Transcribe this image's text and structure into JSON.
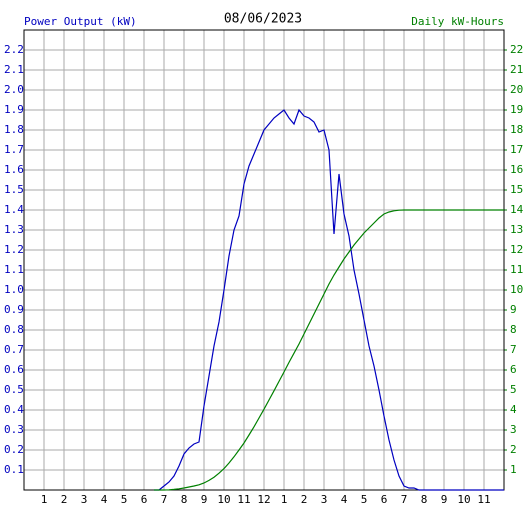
{
  "chart_data": {
    "type": "line",
    "title": "08/06/2023",
    "x": [
      6.5,
      6.75,
      7,
      7.25,
      7.5,
      7.75,
      8,
      8.25,
      8.5,
      8.75,
      9,
      9.25,
      9.5,
      9.75,
      10,
      10.25,
      10.5,
      10.75,
      11,
      11.25,
      11.5,
      11.75,
      12,
      12.25,
      12.5,
      12.75,
      13,
      13.25,
      13.5,
      13.75,
      14,
      14.25,
      14.5,
      14.75,
      15,
      15.25,
      15.5,
      15.75,
      16,
      16.25,
      16.5,
      16.75,
      17,
      17.25,
      17.5,
      17.75,
      18,
      18.25,
      18.5,
      18.75,
      19,
      19.25,
      19.5,
      19.75,
      20,
      24
    ],
    "series": [
      {
        "name": "Power Output (kW)",
        "color": "#0000c0",
        "values": [
          0,
          0,
          0.02,
          0.04,
          0.07,
          0.12,
          0.18,
          0.21,
          0.23,
          0.24,
          0.42,
          0.57,
          0.72,
          0.84,
          1.0,
          1.17,
          1.3,
          1.37,
          1.53,
          1.62,
          1.68,
          1.74,
          1.8,
          1.83,
          1.86,
          1.88,
          1.9,
          1.86,
          1.83,
          1.9,
          1.87,
          1.86,
          1.84,
          1.79,
          1.8,
          1.7,
          1.28,
          1.58,
          1.38,
          1.27,
          1.1,
          0.98,
          0.85,
          0.72,
          0.62,
          0.5,
          0.37,
          0.25,
          0.15,
          0.07,
          0.02,
          0.01,
          0.01,
          0,
          0,
          0
        ]
      },
      {
        "name": "Daily kW-Hours",
        "color": "#008000",
        "axis": "y2",
        "values": [
          0,
          0,
          0,
          0.01,
          0.03,
          0.06,
          0.1,
          0.15,
          0.2,
          0.26,
          0.35,
          0.48,
          0.64,
          0.84,
          1.07,
          1.35,
          1.66,
          2.0,
          2.35,
          2.75,
          3.16,
          3.6,
          4.04,
          4.5,
          4.96,
          5.43,
          5.9,
          6.38,
          6.84,
          7.3,
          7.8,
          8.3,
          8.8,
          9.3,
          9.8,
          10.3,
          10.75,
          11.15,
          11.55,
          11.9,
          12.25,
          12.55,
          12.85,
          13.1,
          13.35,
          13.6,
          13.8,
          13.9,
          13.96,
          13.99,
          14,
          14,
          14,
          14,
          14,
          14
        ]
      }
    ],
    "xlim": [
      0,
      24
    ],
    "xticks": [
      1,
      2,
      3,
      4,
      5,
      6,
      7,
      8,
      9,
      10,
      11,
      12,
      {
        "value": 13,
        "label": "1"
      },
      {
        "value": 14,
        "label": "2"
      },
      {
        "value": 15,
        "label": "3"
      },
      {
        "value": 16,
        "label": "4"
      },
      {
        "value": 17,
        "label": "5"
      },
      {
        "value": 18,
        "label": "6"
      },
      {
        "value": 19,
        "label": "7"
      },
      {
        "value": 20,
        "label": "8"
      },
      {
        "value": 21,
        "label": "9"
      },
      {
        "value": 22,
        "label": "10"
      },
      {
        "value": 23,
        "label": "11"
      }
    ],
    "ylim": [
      0,
      2.3
    ],
    "yticks": [
      0.1,
      0.2,
      0.3,
      0.4,
      0.5,
      0.6,
      0.7,
      0.8,
      0.9,
      {
        "value": 1,
        "label": "1.0"
      },
      1.1,
      1.2,
      1.3,
      1.4,
      1.5,
      1.6,
      1.7,
      1.8,
      1.9,
      {
        "value": 2,
        "label": "2.0"
      },
      2.1,
      2.2
    ],
    "y2lim": [
      0,
      23
    ],
    "y2ticks": [
      1,
      2,
      3,
      4,
      5,
      6,
      7,
      8,
      9,
      10,
      11,
      12,
      13,
      14,
      15,
      16,
      17,
      18,
      19,
      20,
      21,
      22
    ],
    "grid": true
  }
}
